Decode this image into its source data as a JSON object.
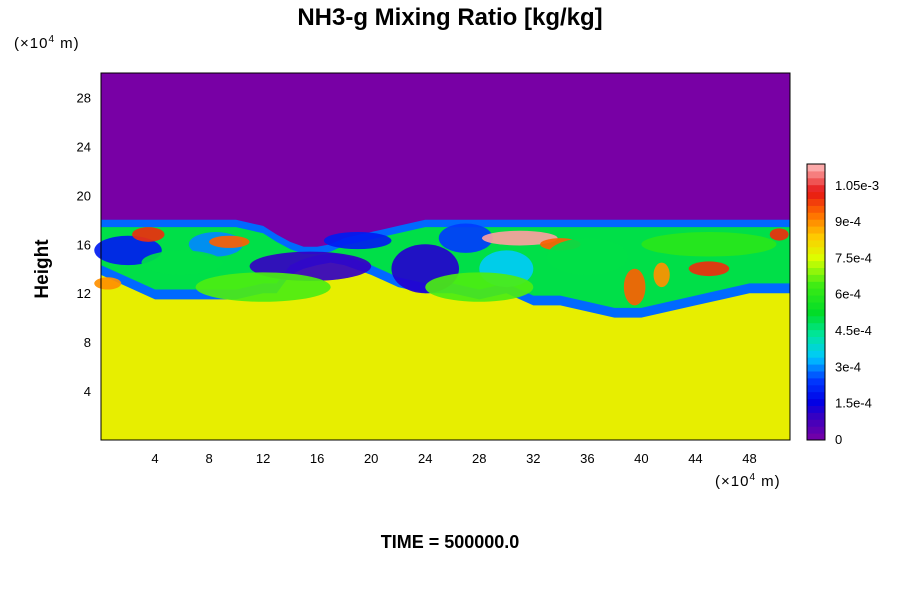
{
  "chart_data": {
    "type": "heatmap",
    "title": "NH3-g Mixing Ratio [kg/kg]",
    "ylabel": "Height",
    "x_unit": "(×10⁴ m)",
    "y_unit": "(×10⁴ m)",
    "x_unit_parts": {
      "prefix": "(×10",
      "exp": "4",
      "suffix": " m)"
    },
    "y_unit_parts": {
      "prefix": "(×10",
      "exp": "4",
      "suffix": " m)"
    },
    "xlim": [
      0,
      51
    ],
    "ylim": [
      0,
      30
    ],
    "x_ticks": [
      4,
      8,
      12,
      16,
      20,
      24,
      28,
      32,
      36,
      40,
      44,
      48
    ],
    "y_ticks": [
      4,
      8,
      12,
      16,
      20,
      24,
      28
    ],
    "colorbar": {
      "range": [
        0,
        0.00114
      ],
      "labels": [
        "0",
        "1.5e-4",
        "3e-4",
        "4.5e-4",
        "6e-4",
        "7.5e-4",
        "9e-4",
        "1.05e-3"
      ],
      "values": [
        0,
        0.00015,
        0.0003,
        0.00045,
        0.0006,
        0.00075,
        0.0009,
        0.00105
      ]
    },
    "background_value": 0.00078,
    "upper_value": 0,
    "boundary": {
      "x": [
        0,
        2,
        4,
        6,
        8,
        10,
        12,
        13,
        14,
        15,
        16,
        17,
        18,
        20,
        22,
        24,
        26,
        28,
        30,
        32,
        34,
        36,
        38,
        40,
        42,
        44,
        46,
        48,
        51
      ],
      "y_top": [
        18,
        18,
        18,
        18,
        18,
        18,
        17.5,
        16.8,
        16.2,
        15.8,
        15.8,
        16,
        16.5,
        17,
        17.5,
        18,
        18,
        18,
        18,
        18,
        18,
        18,
        18,
        18,
        18,
        18,
        18,
        18,
        18
      ],
      "y_base": [
        13.5,
        12.5,
        11.5,
        11.5,
        11.5,
        11.5,
        12,
        12,
        13.5,
        14,
        14.3,
        14.5,
        14.3,
        13.5,
        12.5,
        12,
        12,
        11.5,
        12,
        11,
        11,
        10.5,
        10,
        10,
        10.5,
        11,
        11.5,
        12,
        12
      ]
    },
    "features": [
      {
        "x": 15.5,
        "y": 14.2,
        "value": 0.0001,
        "rx": 4.5,
        "ry": 1.2
      },
      {
        "x": 24,
        "y": 14,
        "value": 0.00012,
        "rx": 2.5,
        "ry": 2
      },
      {
        "x": 2,
        "y": 15.5,
        "value": 0.0002,
        "rx": 2.5,
        "ry": 1.2
      },
      {
        "x": 27,
        "y": 16.5,
        "value": 0.00025,
        "rx": 2,
        "ry": 1.2
      },
      {
        "x": 30,
        "y": 14,
        "value": 0.00035,
        "rx": 2,
        "ry": 1.5
      },
      {
        "x": 8.5,
        "y": 16,
        "value": 0.0003,
        "rx": 2,
        "ry": 1
      },
      {
        "x": 19,
        "y": 16.3,
        "value": 0.0002,
        "rx": 2.5,
        "ry": 0.7
      },
      {
        "x": 3.5,
        "y": 16.8,
        "value": 0.001,
        "rx": 1.2,
        "ry": 0.6
      },
      {
        "x": 9.5,
        "y": 16.2,
        "value": 0.00095,
        "rx": 1.5,
        "ry": 0.5
      },
      {
        "x": 31,
        "y": 16.5,
        "value": 0.00112,
        "rx": 2.8,
        "ry": 0.6
      },
      {
        "x": 34,
        "y": 16,
        "value": 0.00095,
        "rx": 1.5,
        "ry": 0.5
      },
      {
        "x": 45,
        "y": 14,
        "value": 0.001,
        "rx": 1.5,
        "ry": 0.6
      },
      {
        "x": 39.5,
        "y": 12.5,
        "value": 0.00095,
        "rx": 0.8,
        "ry": 1.5
      },
      {
        "x": 41.5,
        "y": 13.5,
        "value": 0.0009,
        "rx": 0.6,
        "ry": 1
      },
      {
        "x": 50.2,
        "y": 16.8,
        "value": 0.001,
        "rx": 0.7,
        "ry": 0.5
      },
      {
        "x": 0.5,
        "y": 12.8,
        "value": 0.0009,
        "rx": 1,
        "ry": 0.5
      },
      {
        "x": 6,
        "y": 14.5,
        "value": 0.0005,
        "rx": 3,
        "ry": 1
      },
      {
        "x": 36,
        "y": 15,
        "value": 0.0005,
        "rx": 3,
        "ry": 1.5
      },
      {
        "x": 45,
        "y": 16,
        "value": 0.0006,
        "rx": 5,
        "ry": 1
      },
      {
        "x": 12,
        "y": 12.5,
        "value": 0.00065,
        "rx": 5,
        "ry": 1.2
      },
      {
        "x": 28,
        "y": 12.5,
        "value": 0.00065,
        "rx": 4,
        "ry": 1.2
      }
    ]
  },
  "footer": {
    "time_label": "TIME = 500000.0"
  }
}
